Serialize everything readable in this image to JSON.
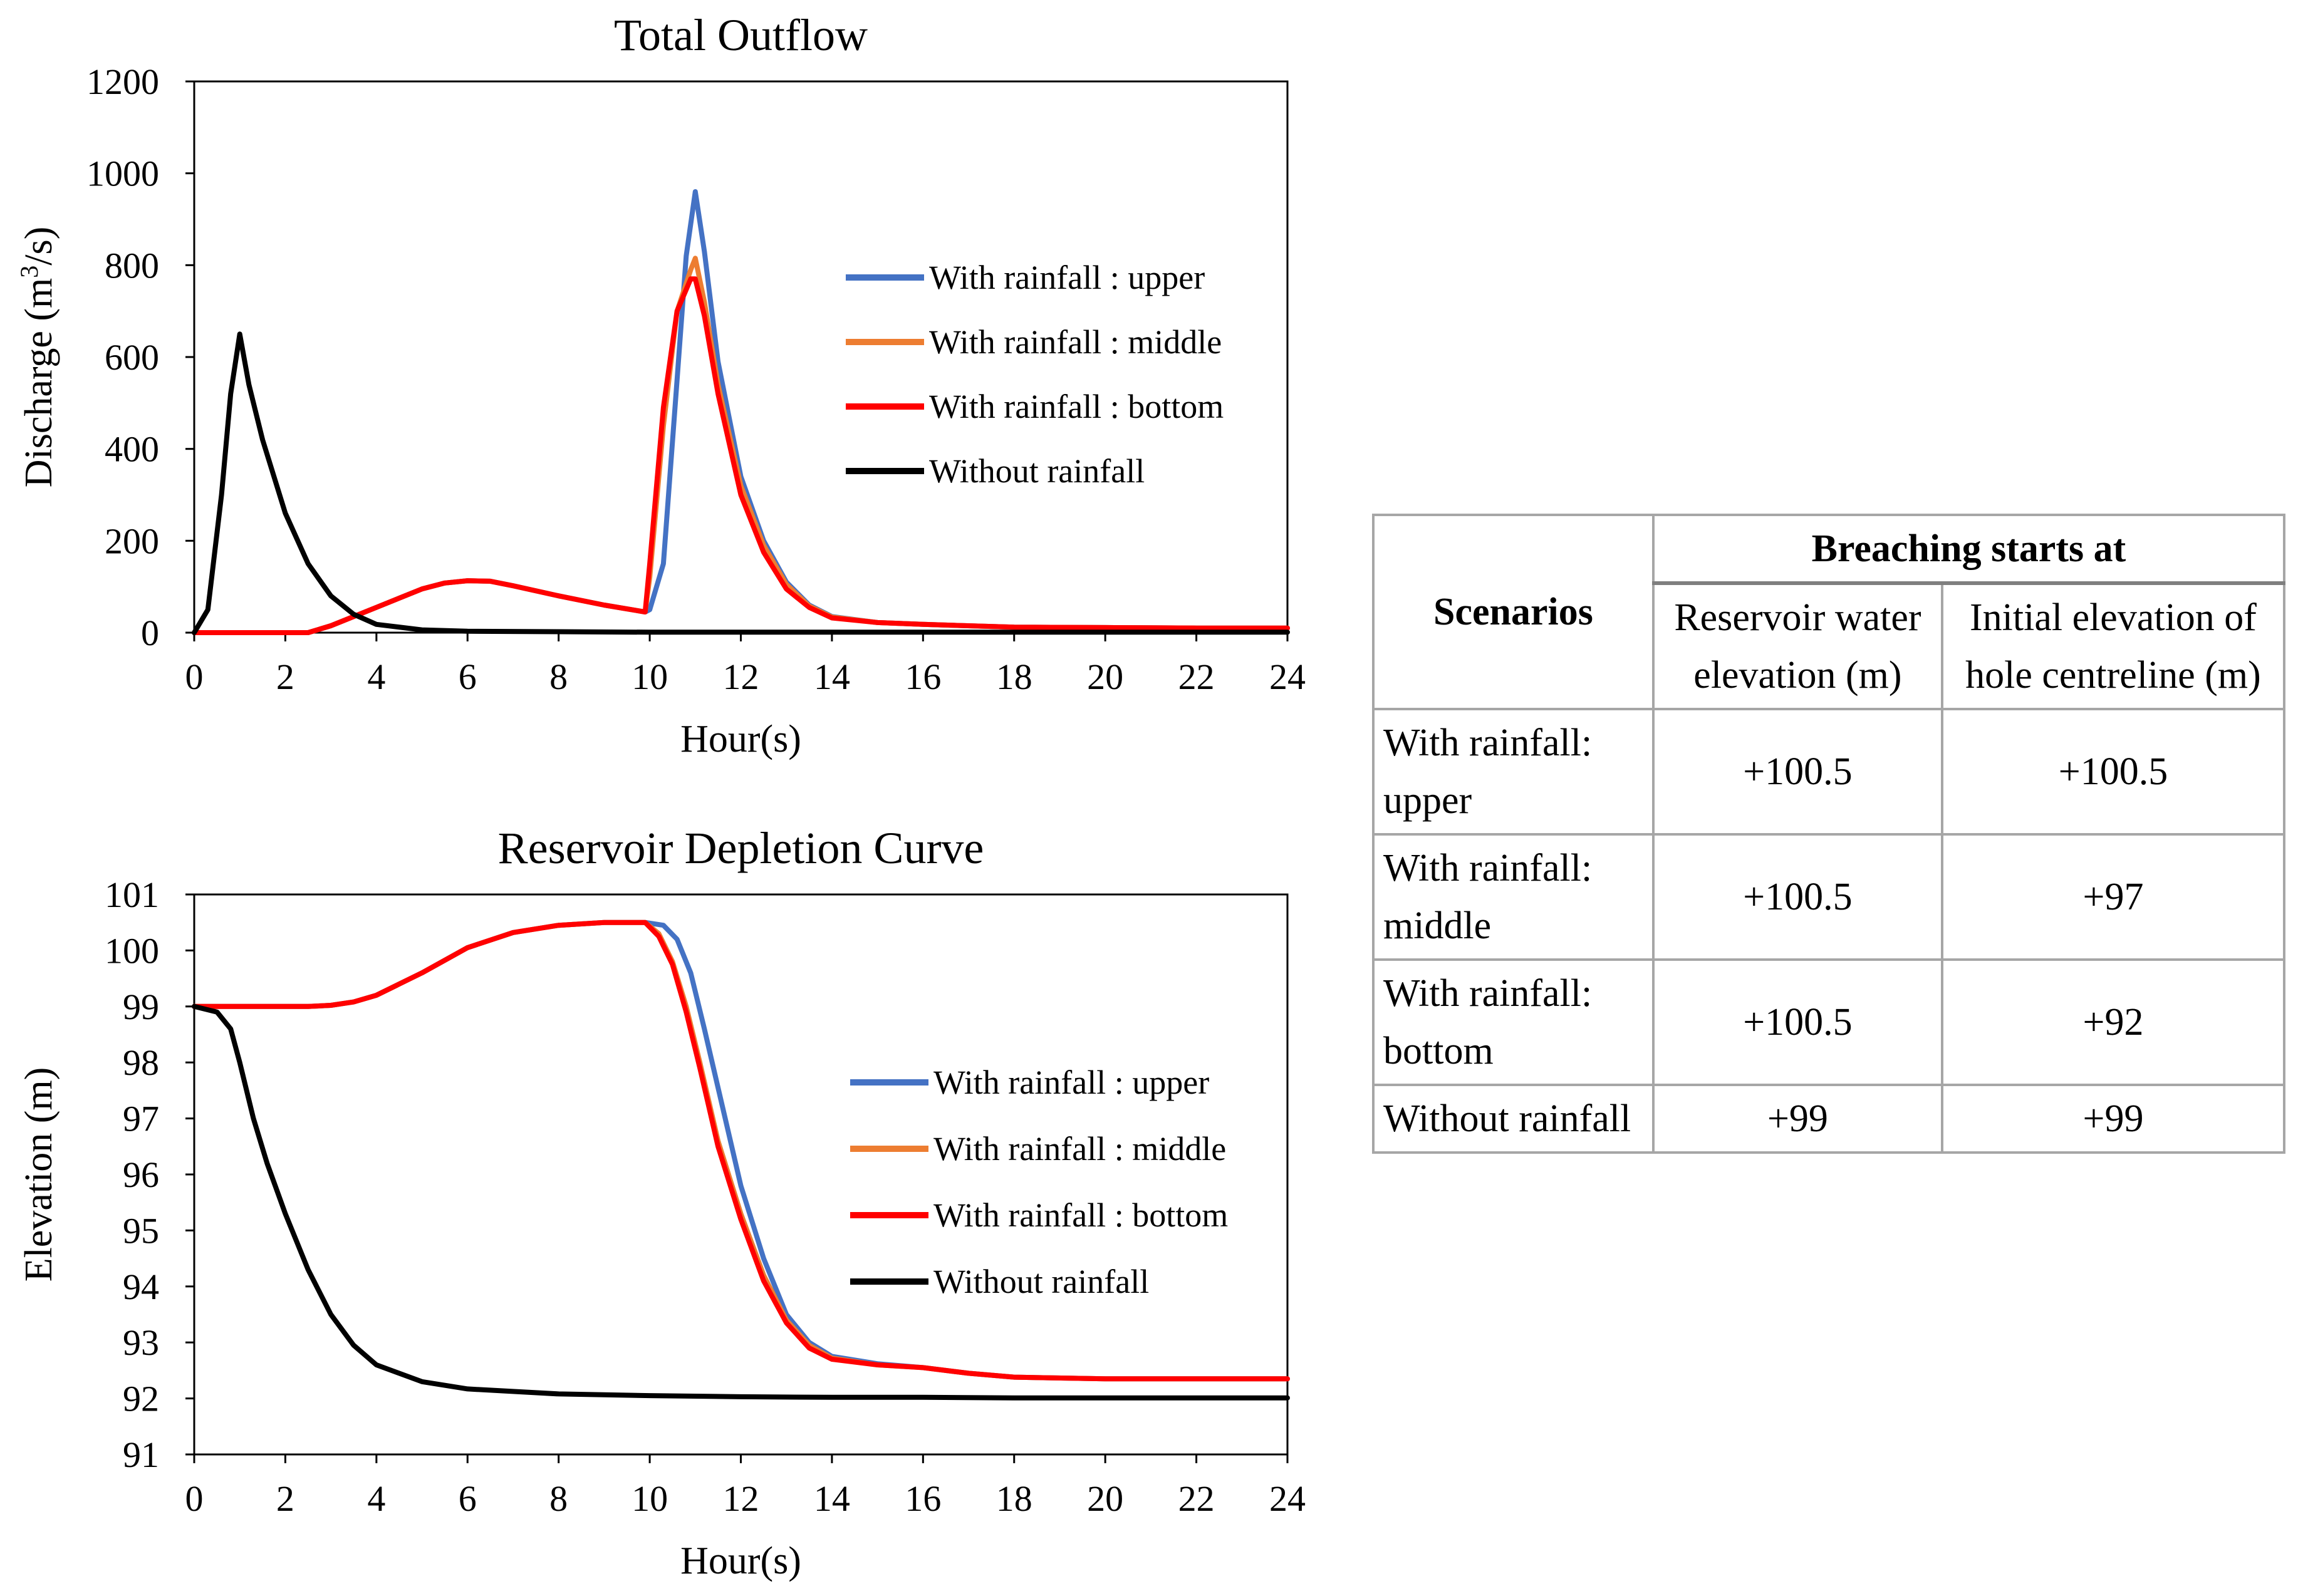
{
  "chart_data": [
    {
      "type": "line",
      "title": "Total Outflow",
      "xlabel": "Hour(s)",
      "ylabel_main": "Discharge (m",
      "ylabel_sup": "3",
      "ylabel_tail": "/s)",
      "xlim": [
        0,
        24
      ],
      "ylim": [
        0,
        1200
      ],
      "xticks": [
        "0",
        "2",
        "4",
        "6",
        "8",
        "10",
        "12",
        "14",
        "16",
        "18",
        "20",
        "22",
        "24"
      ],
      "yticks": [
        "0",
        "200",
        "400",
        "600",
        "800",
        "1000",
        "1200"
      ],
      "grid": false,
      "legend_position": "upper-right",
      "series": [
        {
          "name": "With rainfall : upper",
          "color": "#4472C4",
          "x": [
            0,
            1,
            2,
            2.5,
            3,
            4,
            5,
            5.5,
            6,
            6.5,
            7,
            8,
            9,
            9.9,
            10,
            10.3,
            10.6,
            10.8,
            11,
            11.2,
            11.5,
            12,
            12.5,
            13,
            13.5,
            14,
            15,
            16,
            18,
            20,
            22,
            24
          ],
          "y": [
            0,
            0,
            0,
            0,
            15,
            55,
            95,
            108,
            113,
            112,
            102,
            80,
            60,
            45,
            50,
            150,
            550,
            820,
            960,
            830,
            590,
            340,
            200,
            110,
            60,
            35,
            22,
            18,
            12,
            11,
            10,
            10
          ]
        },
        {
          "name": "With rainfall : middle",
          "color": "#ED7D31",
          "x": [
            0,
            1,
            2,
            2.5,
            3,
            4,
            5,
            5.5,
            6,
            6.5,
            7,
            8,
            9,
            9.9,
            10,
            10.3,
            10.6,
            10.9,
            11,
            11.2,
            11.5,
            12,
            12.5,
            13,
            13.5,
            14,
            15,
            16,
            18,
            20,
            22,
            24
          ],
          "y": [
            0,
            0,
            0,
            0,
            15,
            55,
            95,
            108,
            113,
            112,
            102,
            80,
            60,
            45,
            120,
            450,
            700,
            790,
            815,
            720,
            540,
            320,
            190,
            105,
            58,
            34,
            22,
            18,
            12,
            11,
            10,
            10
          ]
        },
        {
          "name": "With rainfall : bottom",
          "color": "#FF0000",
          "x": [
            0,
            1,
            2,
            2.5,
            3,
            4,
            5,
            5.5,
            6,
            6.5,
            7,
            8,
            9,
            9.9,
            10,
            10.3,
            10.6,
            10.9,
            11,
            11.2,
            11.5,
            12,
            12.5,
            13,
            13.5,
            14,
            15,
            16,
            18,
            20,
            22,
            24
          ],
          "y": [
            0,
            0,
            0,
            0,
            15,
            55,
            95,
            108,
            113,
            112,
            102,
            80,
            60,
            45,
            150,
            490,
            700,
            770,
            770,
            690,
            520,
            300,
            175,
            95,
            55,
            32,
            22,
            18,
            12,
            11,
            10,
            10
          ]
        },
        {
          "name": "Without rainfall",
          "color": "#000000",
          "x": [
            0,
            0.3,
            0.6,
            0.8,
            1,
            1.2,
            1.5,
            2,
            2.5,
            3,
            3.5,
            4,
            5,
            6,
            8,
            10,
            12,
            14,
            16,
            18,
            20,
            22,
            24
          ],
          "y": [
            0,
            50,
            300,
            520,
            650,
            540,
            420,
            260,
            150,
            80,
            40,
            18,
            6,
            3,
            2,
            1,
            1,
            1,
            1,
            1,
            1,
            1,
            1
          ]
        }
      ]
    },
    {
      "type": "line",
      "title": "Reservoir Depletion Curve",
      "xlabel": "Hour(s)",
      "ylabel": "Elevation (m)",
      "xlim": [
        0,
        24
      ],
      "ylim": [
        91,
        101
      ],
      "xticks": [
        "0",
        "2",
        "4",
        "6",
        "8",
        "10",
        "12",
        "14",
        "16",
        "18",
        "20",
        "22",
        "24"
      ],
      "yticks": [
        "91",
        "92",
        "93",
        "94",
        "95",
        "96",
        "97",
        "98",
        "99",
        "100",
        "101"
      ],
      "grid": false,
      "legend_position": "center-right",
      "series": [
        {
          "name": "With rainfall : upper",
          "color": "#4472C4",
          "x": [
            0,
            1,
            2,
            2.5,
            3,
            3.5,
            4,
            5,
            6,
            7,
            8,
            9,
            9.9,
            10.3,
            10.6,
            10.9,
            11.2,
            11.6,
            12,
            12.5,
            13,
            13.5,
            14,
            15,
            16,
            17,
            18,
            20,
            22,
            24
          ],
          "y": [
            99,
            99,
            99,
            99,
            99.02,
            99.08,
            99.2,
            99.6,
            100.05,
            100.32,
            100.45,
            100.5,
            100.5,
            100.45,
            100.2,
            99.6,
            98.6,
            97.2,
            95.8,
            94.5,
            93.5,
            93.0,
            92.75,
            92.62,
            92.55,
            92.45,
            92.38,
            92.35,
            92.35,
            92.35
          ]
        },
        {
          "name": "With rainfall : middle",
          "color": "#ED7D31",
          "x": [
            0,
            1,
            2,
            2.5,
            3,
            3.5,
            4,
            5,
            6,
            7,
            8,
            9,
            9.9,
            10.2,
            10.5,
            10.8,
            11.1,
            11.5,
            12,
            12.5,
            13,
            13.5,
            14,
            15,
            16,
            17,
            18,
            20,
            22,
            24
          ],
          "y": [
            99,
            99,
            99,
            99,
            99.02,
            99.08,
            99.2,
            99.6,
            100.05,
            100.32,
            100.45,
            100.5,
            100.5,
            100.3,
            99.8,
            99.0,
            98.0,
            96.6,
            95.3,
            94.2,
            93.4,
            92.95,
            92.72,
            92.6,
            92.55,
            92.45,
            92.38,
            92.35,
            92.35,
            92.35
          ]
        },
        {
          "name": "With rainfall : bottom",
          "color": "#FF0000",
          "x": [
            0,
            1,
            2,
            2.5,
            3,
            3.5,
            4,
            5,
            6,
            7,
            8,
            9,
            9.9,
            10.2,
            10.5,
            10.8,
            11.1,
            11.5,
            12,
            12.5,
            13,
            13.5,
            14,
            15,
            16,
            17,
            18,
            20,
            22,
            24
          ],
          "y": [
            99,
            99,
            99,
            99,
            99.02,
            99.08,
            99.2,
            99.6,
            100.05,
            100.32,
            100.45,
            100.5,
            100.5,
            100.25,
            99.75,
            98.9,
            97.9,
            96.5,
            95.2,
            94.1,
            93.35,
            92.9,
            92.7,
            92.6,
            92.55,
            92.45,
            92.38,
            92.35,
            92.35,
            92.35
          ]
        },
        {
          "name": "Without rainfall",
          "color": "#000000",
          "x": [
            0,
            0.5,
            0.8,
            1,
            1.3,
            1.6,
            2,
            2.5,
            3,
            3.5,
            4,
            5,
            6,
            8,
            10,
            12,
            14,
            16,
            18,
            20,
            22,
            24
          ],
          "y": [
            99,
            98.9,
            98.6,
            98.0,
            97.0,
            96.2,
            95.3,
            94.3,
            93.5,
            92.95,
            92.6,
            92.3,
            92.17,
            92.08,
            92.05,
            92.03,
            92.02,
            92.02,
            92.01,
            92.01,
            92.01,
            92.01
          ]
        }
      ]
    }
  ],
  "table": {
    "header_scenarios": "Scenarios",
    "header_group": "Breaching starts at",
    "col_a": "Reservoir water elevation (m)",
    "col_b": "Initial elevation of hole centreline (m)",
    "rows": [
      {
        "scenario": "With rainfall: upper",
        "a": "+100.5",
        "b": "+100.5"
      },
      {
        "scenario": "With rainfall: middle",
        "a": "+100.5",
        "b": "+97"
      },
      {
        "scenario": "With rainfall: bottom",
        "a": "+100.5",
        "b": "+92"
      },
      {
        "scenario": "Without rainfall",
        "a": "+99",
        "b": "+99"
      }
    ]
  }
}
